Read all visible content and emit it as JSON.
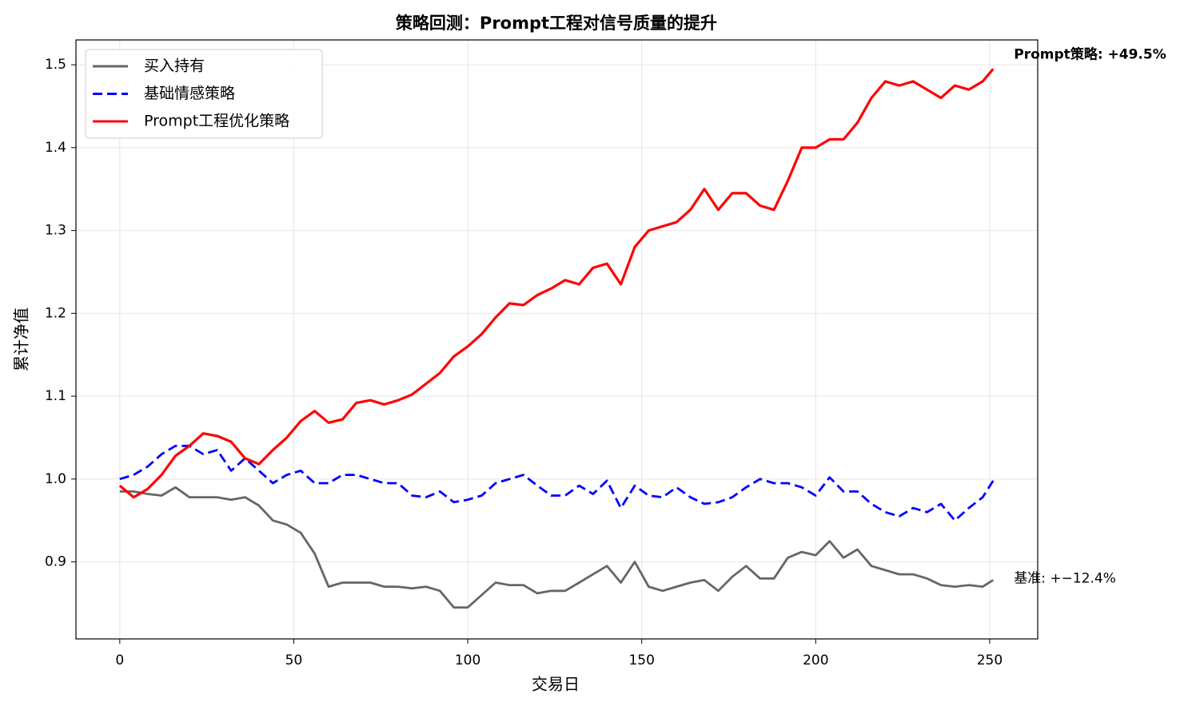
{
  "chart_data": {
    "type": "line",
    "title": "策略回测：Prompt工程对信号质量的提升",
    "x_label": "交易日",
    "y_label": "累计净值",
    "x": [
      0,
      4,
      8,
      12,
      16,
      20,
      24,
      28,
      32,
      36,
      40,
      44,
      48,
      52,
      56,
      60,
      64,
      68,
      72,
      76,
      80,
      84,
      88,
      92,
      96,
      100,
      104,
      108,
      112,
      116,
      120,
      124,
      128,
      132,
      136,
      140,
      144,
      148,
      152,
      156,
      160,
      164,
      168,
      172,
      176,
      180,
      184,
      188,
      192,
      196,
      200,
      204,
      208,
      212,
      216,
      220,
      224,
      228,
      232,
      236,
      240,
      244,
      248,
      251
    ],
    "series": [
      {
        "name": "买入持有",
        "color": "#666666",
        "style": "solid",
        "values": [
          0.985,
          0.985,
          0.982,
          0.98,
          0.99,
          0.978,
          0.978,
          0.978,
          0.975,
          0.978,
          0.968,
          0.95,
          0.945,
          0.935,
          0.91,
          0.87,
          0.875,
          0.875,
          0.875,
          0.87,
          0.87,
          0.868,
          0.87,
          0.865,
          0.845,
          0.845,
          0.86,
          0.875,
          0.872,
          0.872,
          0.862,
          0.865,
          0.865,
          0.875,
          0.885,
          0.895,
          0.875,
          0.9,
          0.87,
          0.865,
          0.87,
          0.875,
          0.878,
          0.865,
          0.882,
          0.895,
          0.88,
          0.88,
          0.905,
          0.912,
          0.908,
          0.925,
          0.905,
          0.915,
          0.895,
          0.89,
          0.885,
          0.885,
          0.88,
          0.872,
          0.87,
          0.872,
          0.87,
          0.878
        ]
      },
      {
        "name": "基础情感策略",
        "color": "#0000ff",
        "style": "dashed",
        "values": [
          1.0,
          1.005,
          1.015,
          1.03,
          1.04,
          1.04,
          1.03,
          1.035,
          1.01,
          1.025,
          1.01,
          0.995,
          1.005,
          1.01,
          0.995,
          0.995,
          1.005,
          1.005,
          1.0,
          0.995,
          0.995,
          0.98,
          0.978,
          0.985,
          0.972,
          0.975,
          0.98,
          0.995,
          1.0,
          1.005,
          0.992,
          0.98,
          0.98,
          0.992,
          0.982,
          0.998,
          0.965,
          0.992,
          0.98,
          0.978,
          0.99,
          0.978,
          0.97,
          0.972,
          0.978,
          0.99,
          1.0,
          0.995,
          0.995,
          0.99,
          0.98,
          1.002,
          0.985,
          0.985,
          0.97,
          0.96,
          0.955,
          0.965,
          0.96,
          0.97,
          0.95,
          0.965,
          0.978,
          0.998
        ]
      },
      {
        "name": "Prompt工程优化策略",
        "color": "#ff0000",
        "style": "solid",
        "values": [
          0.992,
          0.978,
          0.988,
          1.005,
          1.028,
          1.04,
          1.055,
          1.052,
          1.045,
          1.025,
          1.018,
          1.035,
          1.05,
          1.07,
          1.082,
          1.068,
          1.072,
          1.092,
          1.095,
          1.09,
          1.095,
          1.102,
          1.115,
          1.128,
          1.148,
          1.16,
          1.175,
          1.195,
          1.212,
          1.21,
          1.222,
          1.23,
          1.24,
          1.235,
          1.255,
          1.26,
          1.235,
          1.28,
          1.3,
          1.305,
          1.31,
          1.325,
          1.35,
          1.325,
          1.345,
          1.345,
          1.33,
          1.325,
          1.36,
          1.4,
          1.4,
          1.41,
          1.41,
          1.43,
          1.46,
          1.48,
          1.475,
          1.48,
          1.47,
          1.46,
          1.475,
          1.47,
          1.48,
          1.495
        ]
      }
    ],
    "annotation_strategy": "Prompt策略: +49.5%",
    "annotation_benchmark": "基准: +−12.4%",
    "xlim": [
      -12.6,
      263.8
    ],
    "ylim": [
      0.807,
      1.53
    ],
    "xticks": [
      0,
      50,
      100,
      150,
      200,
      250
    ],
    "yticks": [
      0.9,
      {
        "value": 1,
        "label": "1.0"
      },
      1.1,
      1.2,
      1.3,
      1.4,
      1.5
    ],
    "grid": true,
    "legend": "upper-left"
  }
}
